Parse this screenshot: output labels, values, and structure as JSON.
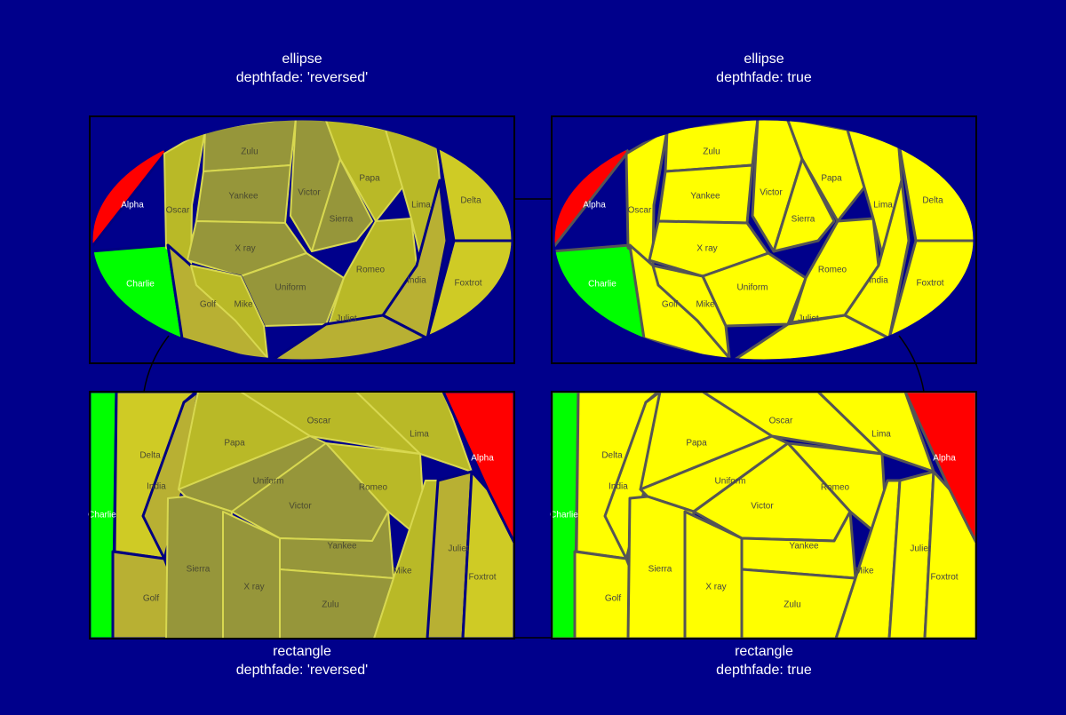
{
  "background": "#00008b",
  "chart_data": [
    {
      "type": "voronoi_treemap",
      "tiling": "ellipse",
      "depthfade": "reversed",
      "title_line1": "ellipse",
      "title_line2": "depthfade: 'reversed'",
      "leaves": [
        {
          "name": "Alpha",
          "color": "#ff0000",
          "depth": 1
        },
        {
          "name": "Charlie",
          "color": "#00ff00",
          "depth": 1
        },
        {
          "name": "Oscar",
          "color": "#ffff00",
          "depth": 3
        },
        {
          "name": "Zulu",
          "color": "#ffff00",
          "depth": 4
        },
        {
          "name": "Yankee",
          "color": "#ffff00",
          "depth": 4
        },
        {
          "name": "X ray",
          "color": "#ffff00",
          "depth": 4
        },
        {
          "name": "Victor",
          "color": "#ffff00",
          "depth": 4
        },
        {
          "name": "Sierra",
          "color": "#ffff00",
          "depth": 4
        },
        {
          "name": "Uniform",
          "color": "#ffff00",
          "depth": 4
        },
        {
          "name": "Papa",
          "color": "#ffff00",
          "depth": 3
        },
        {
          "name": "Romeo",
          "color": "#ffff00",
          "depth": 3
        },
        {
          "name": "Lima",
          "color": "#ffff00",
          "depth": 3
        },
        {
          "name": "India",
          "color": "#ffff00",
          "depth": 2
        },
        {
          "name": "Golf",
          "color": "#ffff00",
          "depth": 2
        },
        {
          "name": "Mike",
          "color": "#ffff00",
          "depth": 3
        },
        {
          "name": "Juliet",
          "color": "#ffff00",
          "depth": 2
        },
        {
          "name": "Delta",
          "color": "#ffff00",
          "depth": 1
        },
        {
          "name": "Foxtrot",
          "color": "#ffff00",
          "depth": 1
        }
      ]
    },
    {
      "type": "voronoi_treemap",
      "tiling": "ellipse",
      "depthfade": "true",
      "title_line1": "ellipse",
      "title_line2": "depthfade: true",
      "leaves": [
        {
          "name": "Alpha",
          "color": "#ff0000",
          "depth": 1
        },
        {
          "name": "Charlie",
          "color": "#00ff00",
          "depth": 1
        },
        {
          "name": "Oscar",
          "color": "#ffff00",
          "depth": 3
        },
        {
          "name": "Zulu",
          "color": "#ffff00",
          "depth": 4
        },
        {
          "name": "Yankee",
          "color": "#ffff00",
          "depth": 4
        },
        {
          "name": "X ray",
          "color": "#ffff00",
          "depth": 4
        },
        {
          "name": "Victor",
          "color": "#ffff00",
          "depth": 4
        },
        {
          "name": "Sierra",
          "color": "#ffff00",
          "depth": 4
        },
        {
          "name": "Uniform",
          "color": "#ffff00",
          "depth": 4
        },
        {
          "name": "Papa",
          "color": "#ffff00",
          "depth": 3
        },
        {
          "name": "Romeo",
          "color": "#ffff00",
          "depth": 3
        },
        {
          "name": "Lima",
          "color": "#ffff00",
          "depth": 3
        },
        {
          "name": "India",
          "color": "#ffff00",
          "depth": 2
        },
        {
          "name": "Golf",
          "color": "#ffff00",
          "depth": 2
        },
        {
          "name": "Mike",
          "color": "#ffff00",
          "depth": 3
        },
        {
          "name": "Juliet",
          "color": "#ffff00",
          "depth": 2
        },
        {
          "name": "Delta",
          "color": "#ffff00",
          "depth": 1
        },
        {
          "name": "Foxtrot",
          "color": "#ffff00",
          "depth": 1
        }
      ]
    },
    {
      "type": "voronoi_treemap",
      "tiling": "rectangle",
      "depthfade": "reversed",
      "title_line1": "rectangle",
      "title_line2": "depthfade: 'reversed'",
      "leaves": [
        {
          "name": "Charlie",
          "color": "#00ff00",
          "depth": 1
        },
        {
          "name": "Delta",
          "color": "#ffff00",
          "depth": 1
        },
        {
          "name": "India",
          "color": "#ffff00",
          "depth": 2
        },
        {
          "name": "Golf",
          "color": "#ffff00",
          "depth": 2
        },
        {
          "name": "Papa",
          "color": "#ffff00",
          "depth": 3
        },
        {
          "name": "Oscar",
          "color": "#ffff00",
          "depth": 3
        },
        {
          "name": "Lima",
          "color": "#ffff00",
          "depth": 3
        },
        {
          "name": "Uniform",
          "color": "#ffff00",
          "depth": 4
        },
        {
          "name": "Romeo",
          "color": "#ffff00",
          "depth": 3
        },
        {
          "name": "Victor",
          "color": "#ffff00",
          "depth": 4
        },
        {
          "name": "Sierra",
          "color": "#ffff00",
          "depth": 4
        },
        {
          "name": "X ray",
          "color": "#ffff00",
          "depth": 4
        },
        {
          "name": "Yankee",
          "color": "#ffff00",
          "depth": 4
        },
        {
          "name": "Zulu",
          "color": "#ffff00",
          "depth": 4
        },
        {
          "name": "Mike",
          "color": "#ffff00",
          "depth": 3
        },
        {
          "name": "Juliet",
          "color": "#ffff00",
          "depth": 2
        },
        {
          "name": "Foxtrot",
          "color": "#ffff00",
          "depth": 1
        },
        {
          "name": "Alpha",
          "color": "#ff0000",
          "depth": 1
        }
      ]
    },
    {
      "type": "voronoi_treemap",
      "tiling": "rectangle",
      "depthfade": "true",
      "title_line1": "rectangle",
      "title_line2": "depthfade: true",
      "leaves": [
        {
          "name": "Charlie",
          "color": "#00ff00",
          "depth": 1
        },
        {
          "name": "Delta",
          "color": "#ffff00",
          "depth": 1
        },
        {
          "name": "India",
          "color": "#ffff00",
          "depth": 2
        },
        {
          "name": "Golf",
          "color": "#ffff00",
          "depth": 2
        },
        {
          "name": "Papa",
          "color": "#ffff00",
          "depth": 3
        },
        {
          "name": "Oscar",
          "color": "#ffff00",
          "depth": 3
        },
        {
          "name": "Lima",
          "color": "#ffff00",
          "depth": 3
        },
        {
          "name": "Uniform",
          "color": "#ffff00",
          "depth": 4
        },
        {
          "name": "Romeo",
          "color": "#ffff00",
          "depth": 3
        },
        {
          "name": "Victor",
          "color": "#ffff00",
          "depth": 4
        },
        {
          "name": "Sierra",
          "color": "#ffff00",
          "depth": 4
        },
        {
          "name": "X ray",
          "color": "#ffff00",
          "depth": 4
        },
        {
          "name": "Yankee",
          "color": "#ffff00",
          "depth": 4
        },
        {
          "name": "Zulu",
          "color": "#ffff00",
          "depth": 4
        },
        {
          "name": "Mike",
          "color": "#ffff00",
          "depth": 3
        },
        {
          "name": "Juliet",
          "color": "#ffff00",
          "depth": 2
        },
        {
          "name": "Foxtrot",
          "color": "#ffff00",
          "depth": 1
        },
        {
          "name": "Alpha",
          "color": "#ff0000",
          "depth": 1
        }
      ]
    }
  ]
}
